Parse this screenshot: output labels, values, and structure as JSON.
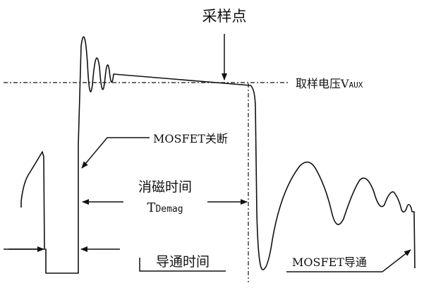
{
  "diagram": {
    "labels": {
      "sample_point": "采样点",
      "sample_voltage_prefix": "取样电压V",
      "sample_voltage_sub": "AUX",
      "mosfet_off": "MOSFET关断",
      "demag_time": "消磁时间",
      "t_demag_main": "T",
      "t_demag_sub": "Demag",
      "on_time": "导通时间",
      "mosfet_on": "MOSFET导通"
    },
    "colors": {
      "stroke": "#111111",
      "background": "#ffffff"
    }
  }
}
